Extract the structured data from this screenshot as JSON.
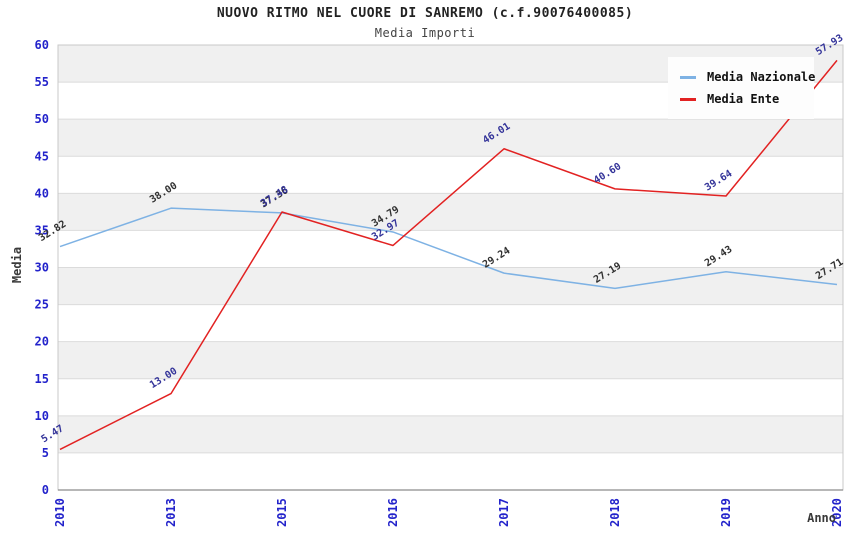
{
  "chart_data": {
    "type": "line",
    "title": "NUOVO RITMO NEL CUORE DI SANREMO (c.f.90076400085)",
    "subtitle": "Media Importi",
    "xlabel": "Anno",
    "ylabel": "Media",
    "categories": [
      "2010",
      "2013",
      "2015",
      "2016",
      "2017",
      "2018",
      "2019",
      "2020"
    ],
    "series": [
      {
        "name": "Media Nazionale",
        "color": "#7EB2E4",
        "label_color": "#303030",
        "values": [
          32.82,
          38.0,
          37.36,
          34.79,
          29.24,
          27.19,
          29.43,
          27.71
        ]
      },
      {
        "name": "Media Ente",
        "color": "#E22222",
        "label_color": "#333399",
        "values": [
          5.47,
          13.0,
          37.48,
          32.97,
          46.01,
          40.6,
          39.64,
          57.93
        ]
      }
    ],
    "ylim": [
      0,
      60
    ],
    "yticks": [
      0,
      5,
      10,
      15,
      20,
      25,
      30,
      35,
      40,
      45,
      50,
      55,
      60
    ],
    "grid": true,
    "banded_background": true,
    "legend_position": "top-right",
    "colors": {
      "axis_tick": "#2323CB",
      "band": "#F0F0F0",
      "grid": "#DBDBDB",
      "border": "#C9C9C9",
      "axis_line": "#8C8C8C"
    }
  }
}
